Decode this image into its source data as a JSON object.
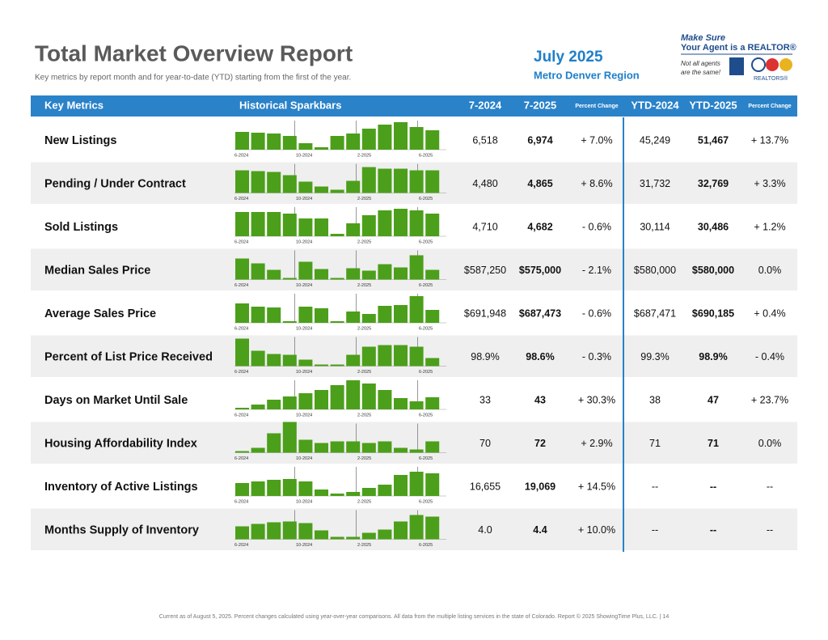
{
  "header": {
    "title": "Total Market Overview Report",
    "subtitle": "Key metrics by report month and for year-to-date (YTD) starting from the first of the year.",
    "month": "July 2025",
    "region": "Metro Denver Region"
  },
  "logo": {
    "line1": "Make Sure",
    "line2": "Your Agent is a REALTOR®",
    "line3": "Not all agents",
    "line4": "are the same!",
    "brand": "REALTORS®"
  },
  "table": {
    "columns": [
      "Key Metrics",
      "Historical Sparkbars",
      "7-2024",
      "7-2025",
      "Percent Change",
      "YTD-2024",
      "YTD-2025",
      "Percent Change"
    ],
    "spark_labels": [
      "6-2024",
      "10-2024",
      "2-2025",
      "6-2025"
    ],
    "rows": [
      {
        "metric": "New Listings",
        "sparkbars": [
          22,
          21,
          20,
          17,
          8,
          3,
          17,
          20,
          26,
          31,
          34,
          28,
          24
        ],
        "cells": [
          "6,518",
          "6,974",
          "+ 7.0%",
          "45,249",
          "51,467",
          "+ 13.7%"
        ]
      },
      {
        "metric": "Pending / Under Contract",
        "sparkbars": [
          28,
          27,
          26,
          22,
          14,
          8,
          4,
          15,
          32,
          30,
          30,
          28,
          28
        ],
        "cells": [
          "4,480",
          "4,865",
          "+ 8.6%",
          "31,732",
          "32,769",
          "+ 3.3%"
        ]
      },
      {
        "metric": "Sold Listings",
        "sparkbars": [
          30,
          30,
          30,
          28,
          22,
          22,
          3,
          16,
          26,
          32,
          34,
          32,
          28
        ],
        "cells": [
          "4,710",
          "4,682",
          "- 0.6%",
          "30,114",
          "30,486",
          "+ 1.2%"
        ]
      },
      {
        "metric": "Median Sales Price",
        "sparkbars": [
          26,
          20,
          12,
          2,
          22,
          13,
          2,
          14,
          11,
          19,
          15,
          30,
          12
        ],
        "cells": [
          "$587,250",
          "$575,000",
          "- 2.1%",
          "$580,000",
          "$580,000",
          "0.0%"
        ]
      },
      {
        "metric": "Average Sales Price",
        "sparkbars": [
          24,
          20,
          19,
          2,
          20,
          18,
          2,
          14,
          11,
          21,
          22,
          33,
          16
        ],
        "cells": [
          "$691,948",
          "$687,473",
          "- 0.6%",
          "$687,471",
          "$690,185",
          "+ 0.4%"
        ]
      },
      {
        "metric": "Percent of List Price Received",
        "sparkbars": [
          34,
          19,
          15,
          14,
          8,
          2,
          2,
          14,
          24,
          26,
          26,
          24,
          10
        ],
        "cells": [
          "98.9%",
          "98.6%",
          "- 0.3%",
          "99.3%",
          "98.9%",
          "- 0.4%"
        ]
      },
      {
        "metric": "Days on Market Until Sale",
        "sparkbars": [
          2,
          6,
          12,
          16,
          20,
          24,
          30,
          36,
          32,
          24,
          14,
          10,
          15
        ],
        "cells": [
          "33",
          "43",
          "+ 30.3%",
          "38",
          "47",
          "+ 23.7%"
        ]
      },
      {
        "metric": "Housing Affordability Index",
        "sparkbars": [
          2,
          6,
          24,
          38,
          16,
          12,
          14,
          14,
          12,
          14,
          6,
          4,
          14
        ],
        "cells": [
          "70",
          "72",
          "+ 2.9%",
          "71",
          "71",
          "0.0%"
        ]
      },
      {
        "metric": "Inventory of Active Listings",
        "sparkbars": [
          16,
          18,
          20,
          21,
          18,
          8,
          3,
          5,
          10,
          14,
          26,
          30,
          28
        ],
        "cells": [
          "16,655",
          "19,069",
          "+ 14.5%",
          "--",
          "--",
          "--"
        ]
      },
      {
        "metric": "Months Supply of Inventory",
        "sparkbars": [
          16,
          19,
          21,
          22,
          20,
          11,
          3,
          3,
          8,
          12,
          22,
          30,
          28
        ],
        "cells": [
          "4.0",
          "4.4",
          "+ 10.0%",
          "--",
          "--",
          "--"
        ]
      }
    ]
  },
  "footer": "Current as of August 5, 2025. Percent changes calculated using year-over-year comparisons. All data from the multiple listing services in the state of Colorado. Report © 2025 ShowingTime Plus, LLC.  |  14"
}
